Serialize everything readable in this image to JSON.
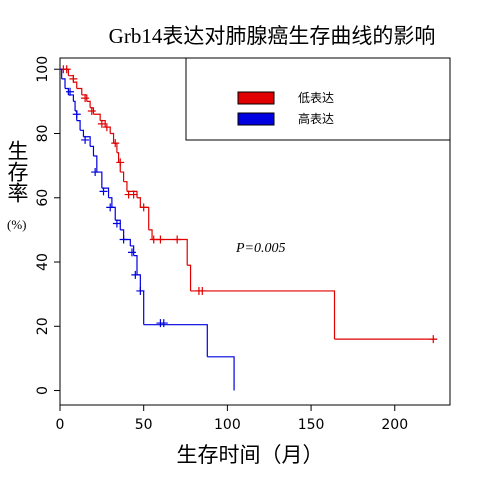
{
  "chart_data": {
    "type": "survival",
    "title": "Grb14表达对肺腺癌生存曲线的影响",
    "xlabel": "生存时间（月）",
    "ylabel": "生存率",
    "ylabel_unit": "(%)",
    "annotation": "P=0.005",
    "xlim": [
      0,
      233
    ],
    "ylim": [
      -4.5,
      103.5
    ],
    "xticks": [
      0,
      50,
      100,
      150,
      200
    ],
    "yticks": [
      0,
      20,
      40,
      60,
      80,
      100
    ],
    "legend": "top-right",
    "series": [
      {
        "name": "低表达",
        "color": "#e00000",
        "x": [
          0,
          5,
          8,
          10,
          13,
          16,
          18,
          20,
          24,
          27,
          30,
          32,
          34,
          35,
          36,
          38,
          40,
          46,
          48,
          53,
          55,
          76,
          78,
          164,
          225
        ],
        "values": [
          100,
          98,
          96,
          94,
          92,
          90,
          88,
          86,
          84,
          82,
          80,
          77,
          74,
          71,
          68,
          65,
          62,
          60,
          57,
          50,
          47,
          39,
          31,
          16,
          16
        ],
        "censor_x": [
          2,
          4,
          8,
          15,
          19,
          25,
          28,
          33,
          36,
          41,
          44,
          50,
          56,
          60,
          70,
          83,
          85,
          223
        ],
        "censor_values": [
          100,
          100,
          97,
          91,
          87,
          83,
          82,
          77,
          71,
          61,
          61,
          57,
          47,
          47,
          47,
          31,
          31,
          16
        ]
      },
      {
        "name": "高表达",
        "color": "#0000e0",
        "x": [
          0,
          1,
          3,
          5,
          8,
          9,
          10,
          12,
          14,
          18,
          20,
          22,
          25,
          29,
          31,
          33,
          36,
          38,
          42,
          44,
          46,
          48,
          50,
          88,
          104
        ],
        "values": [
          100,
          97,
          94,
          92,
          90,
          87,
          84,
          81,
          79,
          76,
          73,
          68,
          63,
          60,
          57,
          53,
          50,
          47,
          45,
          42,
          36,
          31,
          20.5,
          10.5,
          0
        ],
        "censor_x": [
          6,
          10,
          15,
          21,
          26,
          30,
          34,
          38,
          43,
          45,
          48,
          60,
          62
        ],
        "censor_values": [
          93,
          86,
          78,
          68,
          62,
          57,
          52,
          47,
          43,
          36,
          31,
          21,
          21
        ]
      }
    ]
  }
}
